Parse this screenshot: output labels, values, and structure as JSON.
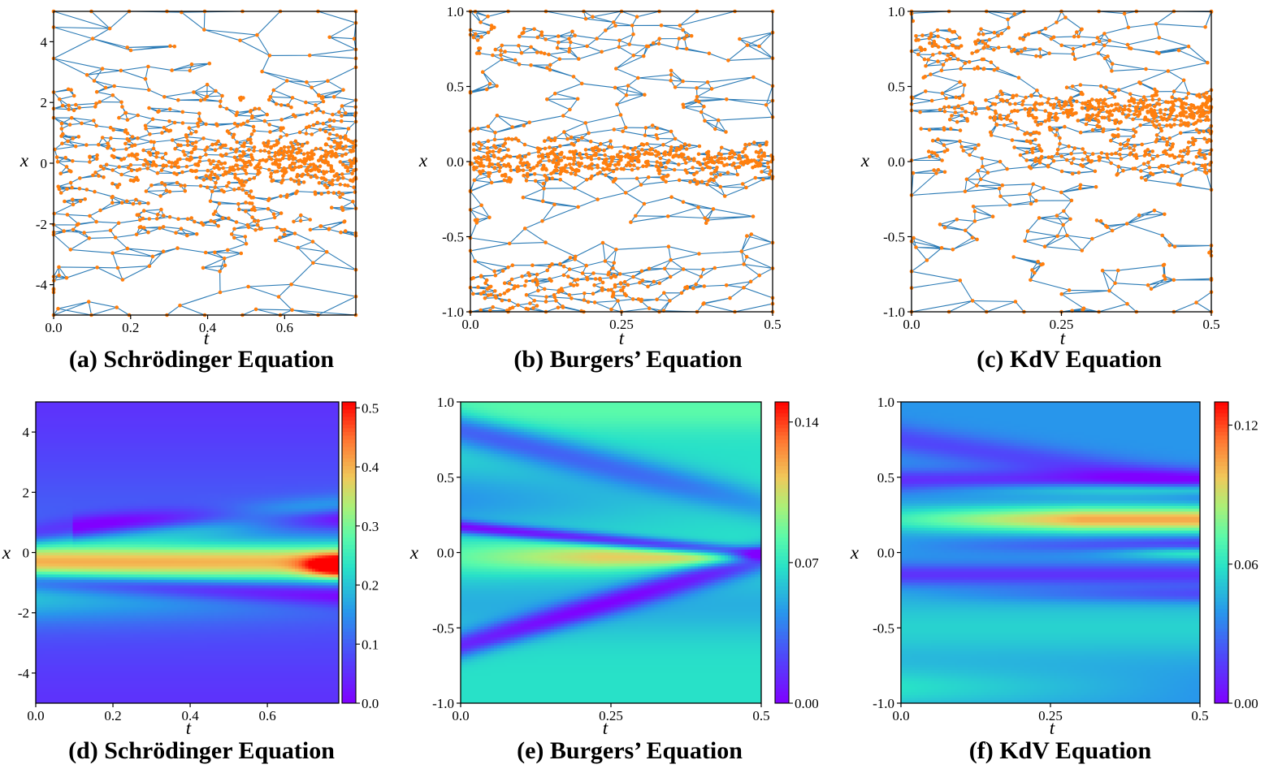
{
  "chart_data": [
    {
      "panel": "a",
      "type": "scatter",
      "title": "(a) Schrödinger Equation",
      "xlabel": "t",
      "ylabel": "x",
      "xlim": [
        0,
        0.785
      ],
      "ylim": [
        -5,
        5
      ],
      "xticks": [
        0,
        0.2,
        0.4,
        0.6
      ],
      "xtick_labels": [
        "0.0",
        "0.2",
        "0.4",
        "0.6"
      ],
      "yticks": [
        4,
        2,
        0,
        -2,
        -4
      ],
      "ytick_labels": [
        "4",
        "2",
        "0",
        "-2",
        "-4"
      ],
      "mesh_color": "#2a7ab5",
      "point_color": "#ff7f0e",
      "density_bands": [
        {
          "center": 0.0,
          "width": 0.45,
          "weight": 0.45,
          "t_bias": "late"
        },
        {
          "center": 0.0,
          "width": 1.5,
          "weight": 0.3,
          "t_bias": "none"
        },
        {
          "center": -1.8,
          "width": 0.5,
          "weight": 0.08,
          "t_bias": "none"
        },
        {
          "center": 1.5,
          "width": 0.5,
          "weight": 0.07,
          "t_bias": "none"
        },
        {
          "center": 0.0,
          "width": 4.0,
          "weight": 0.1,
          "t_bias": "none"
        }
      ]
    },
    {
      "panel": "b",
      "type": "scatter",
      "title": "(b) Burgers’ Equation",
      "xlabel": "t",
      "ylabel": "x",
      "xlim": [
        0,
        0.5
      ],
      "ylim": [
        -1,
        1
      ],
      "xticks": [
        0,
        0.25,
        0.5
      ],
      "xtick_labels": [
        "0.0",
        "0.25",
        "0.5"
      ],
      "yticks": [
        1,
        0.5,
        0,
        -0.5,
        -1
      ],
      "ytick_labels": [
        "1.0",
        "0.5",
        "0.0",
        "-0.5",
        "-1.0"
      ],
      "mesh_color": "#2a7ab5",
      "point_color": "#ff7f0e",
      "density_bands": [
        {
          "center": 0.0,
          "width": 0.06,
          "weight": 0.45,
          "t_bias": "none"
        },
        {
          "center": 0.05,
          "width": 0.1,
          "weight": 0.1,
          "t_bias": "early"
        },
        {
          "center": -0.85,
          "width": 0.1,
          "weight": 0.2,
          "t_bias": "early"
        },
        {
          "center": 0.8,
          "width": 0.1,
          "weight": 0.08,
          "t_bias": "early"
        },
        {
          "center": 0.0,
          "width": 0.7,
          "weight": 0.17,
          "t_bias": "none"
        }
      ]
    },
    {
      "panel": "c",
      "type": "scatter",
      "title": "(c) KdV Equation",
      "xlabel": "t",
      "ylabel": "x",
      "xlim": [
        0,
        0.5
      ],
      "ylim": [
        -1,
        1
      ],
      "xticks": [
        0,
        0.25,
        0.5
      ],
      "xtick_labels": [
        "0.0",
        "0.25",
        "0.5"
      ],
      "yticks": [
        1,
        0.5,
        0,
        -0.5,
        -1
      ],
      "ytick_labels": [
        "1.0",
        "0.5",
        "0.0",
        "-0.5",
        "-1.0"
      ],
      "mesh_color": "#2a7ab5",
      "point_color": "#ff7f0e",
      "density_bands": [
        {
          "center": 0.35,
          "width": 0.06,
          "weight": 0.4,
          "t_bias": "late"
        },
        {
          "center": 0.05,
          "width": 0.08,
          "weight": 0.15,
          "t_bias": "late"
        },
        {
          "center": 0.78,
          "width": 0.06,
          "weight": 0.12,
          "t_bias": "early"
        },
        {
          "center": 0.2,
          "width": 0.1,
          "weight": 0.08,
          "t_bias": "none"
        },
        {
          "center": 0.0,
          "width": 0.7,
          "weight": 0.25,
          "t_bias": "none"
        }
      ]
    },
    {
      "panel": "d",
      "type": "heatmap",
      "title": "(d) Schrödinger Equation",
      "xlabel": "t",
      "ylabel": "x",
      "xlim": [
        0,
        0.785
      ],
      "ylim": [
        -5,
        5
      ],
      "xticks": [
        0,
        0.2,
        0.4,
        0.6
      ],
      "xtick_labels": [
        "0.0",
        "0.2",
        "0.4",
        "0.6"
      ],
      "yticks": [
        4,
        2,
        0,
        -2,
        -4
      ],
      "ytick_labels": [
        "4",
        "2",
        "0",
        "-2",
        "-4"
      ],
      "colorbar": {
        "range": [
          0,
          0.51
        ],
        "ticks": [
          0.5,
          0.4,
          0.3,
          0.2,
          0.1,
          0.0
        ],
        "tick_labels": [
          "0.5",
          "0.4",
          "0.3",
          "0.2",
          "0.1",
          "0.0"
        ]
      },
      "colormap": "rainbow"
    },
    {
      "panel": "e",
      "type": "heatmap",
      "title": "(e) Burgers’ Equation",
      "xlabel": "t",
      "ylabel": "x",
      "xlim": [
        0,
        0.5
      ],
      "ylim": [
        -1,
        1
      ],
      "xticks": [
        0,
        0.25,
        0.5
      ],
      "xtick_labels": [
        "0.0",
        "0.25",
        "0.5"
      ],
      "yticks": [
        1,
        0.5,
        0,
        -0.5,
        -1
      ],
      "ytick_labels": [
        "1.0",
        "0.5",
        "0.0",
        "-0.5",
        "-1.0"
      ],
      "colorbar": {
        "range": [
          0,
          0.15
        ],
        "ticks": [
          0.14,
          0.07,
          0.0
        ],
        "tick_labels": [
          "0.14",
          "0.07",
          "0.00"
        ]
      },
      "colormap": "rainbow"
    },
    {
      "panel": "f",
      "type": "heatmap",
      "title": "(f) KdV Equation",
      "xlabel": "t",
      "ylabel": "x",
      "xlim": [
        0,
        0.5
      ],
      "ylim": [
        -1,
        1
      ],
      "xticks": [
        0,
        0.25,
        0.5
      ],
      "xtick_labels": [
        "0.0",
        "0.25",
        "0.5"
      ],
      "yticks": [
        1,
        0.5,
        0,
        -0.5,
        -1
      ],
      "ytick_labels": [
        "1.0",
        "0.5",
        "0.0",
        "-0.5",
        "-1.0"
      ],
      "colorbar": {
        "range": [
          0,
          0.13
        ],
        "ticks": [
          0.12,
          0.06,
          0.0
        ],
        "tick_labels": [
          "0.12",
          "0.06",
          "0.00"
        ]
      },
      "colormap": "rainbow"
    }
  ]
}
